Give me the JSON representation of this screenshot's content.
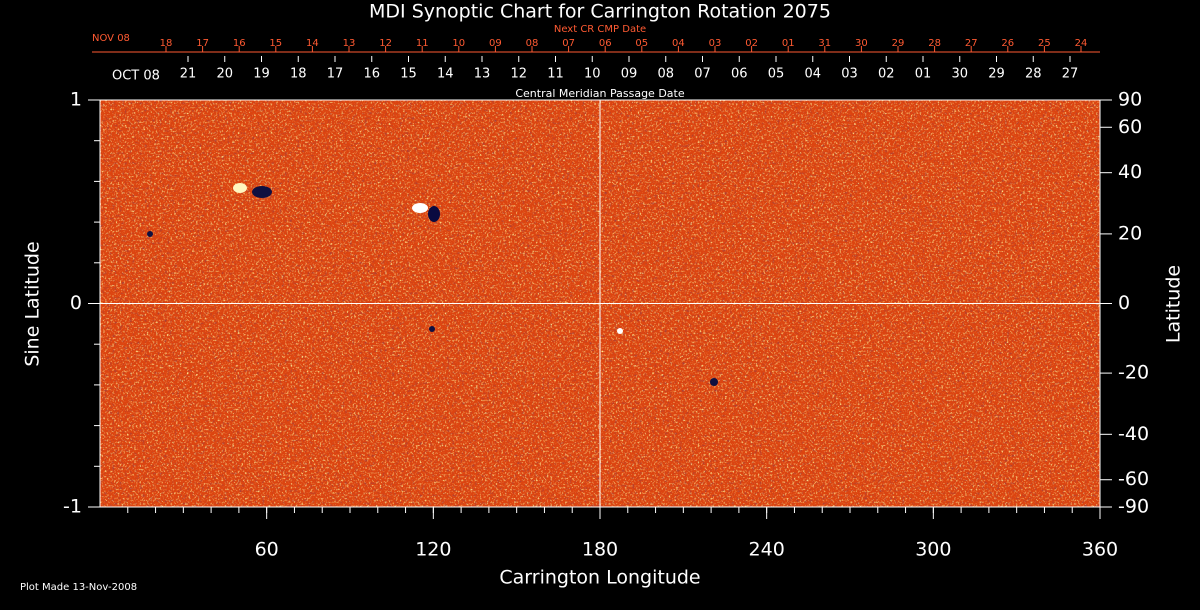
{
  "chart_data": {
    "type": "synoptic-map",
    "title": "MDI Synoptic Chart for Carrington Rotation 2075",
    "x_label": "Carrington Longitude",
    "y_label": "Sine Latitude",
    "y2_label": "Latitude",
    "footer": "Plot Made 13-Nov-2008",
    "xlim": [
      0,
      360
    ],
    "xticks": [
      60,
      120,
      180,
      240,
      300,
      360
    ],
    "ylim": [
      -1,
      1
    ],
    "yticks": [
      -1,
      0,
      1
    ],
    "y2lim": [
      -90,
      90
    ],
    "y2_scale": "sine",
    "y2ticks": [
      90,
      60,
      40,
      20,
      0,
      -20,
      -40,
      -60,
      -90
    ],
    "crosshair_x": 180,
    "crosshair_y": 0,
    "next_cmp_axis": {
      "label": "Next CR CMP Date",
      "start": "NOV 08",
      "labels": [
        "18",
        "17",
        "16",
        "15",
        "14",
        "13",
        "12",
        "11",
        "10",
        "09",
        "08",
        "07",
        "06",
        "05",
        "04",
        "03",
        "02",
        "01",
        "31",
        "30",
        "29",
        "28",
        "27",
        "26",
        "25",
        "24"
      ]
    },
    "cmp_axis": {
      "label": "Central Meridian Passage Date",
      "start": "OCT 08",
      "labels": [
        "21",
        "20",
        "19",
        "18",
        "17",
        "16",
        "15",
        "14",
        "13",
        "12",
        "11",
        "10",
        "09",
        "08",
        "07",
        "06",
        "05",
        "04",
        "03",
        "02",
        "01",
        "30",
        "29",
        "28",
        "27"
      ]
    }
  }
}
